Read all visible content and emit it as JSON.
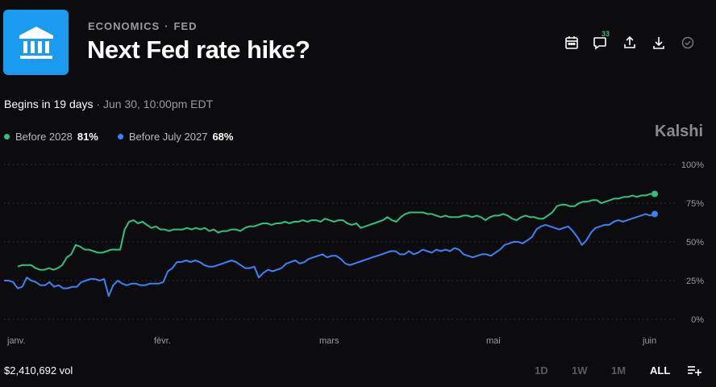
{
  "header": {
    "category": "ECONOMICS",
    "subcategory": "FED",
    "title": "Next Fed rate hike?",
    "logo_icon": "bank-building-icon",
    "comments_count": "33"
  },
  "timing": {
    "begins": "Begins in 19 days",
    "separator": "·",
    "date": "Jun 30, 10:00pm EDT"
  },
  "legend": [
    {
      "name": "Before 2028",
      "value": "81%",
      "color": "#2ec27e"
    },
    {
      "name": "Before July 2027",
      "value": "68%",
      "color": "#3b82f6"
    }
  ],
  "brand": "Kalshi",
  "footer": {
    "volume": "$2,410,692 vol",
    "ranges": [
      "1D",
      "1W",
      "1M",
      "ALL"
    ],
    "active_range": "ALL"
  },
  "chart_data": {
    "type": "line",
    "y_ticks": [
      "100%",
      "75%",
      "50%",
      "25%",
      "0%"
    ],
    "ylim": [
      0,
      100
    ],
    "x_ticks": [
      "janv.",
      "févr.",
      "mars",
      "mai",
      "juin"
    ],
    "grid": true,
    "series": [
      {
        "name": "Before 2028",
        "color": "#2ec27e",
        "values": [
          34,
          35,
          35,
          35,
          33,
          32,
          32,
          33,
          32,
          33,
          35,
          40,
          42,
          48,
          47,
          45,
          45,
          44,
          43,
          43,
          44,
          45,
          45,
          45,
          58,
          63,
          64,
          62,
          63,
          61,
          59,
          60,
          58,
          58,
          57,
          58,
          58,
          58,
          59,
          58,
          59,
          58,
          59,
          57,
          58,
          56,
          57,
          57,
          58,
          58,
          57,
          59,
          60,
          60,
          61,
          62,
          62,
          61,
          62,
          62,
          63,
          62,
          63,
          63,
          64,
          63,
          64,
          64,
          63,
          65,
          64,
          63,
          64,
          64,
          62,
          61,
          62,
          59,
          60,
          61,
          62,
          63,
          64,
          66,
          64,
          63,
          66,
          68,
          69,
          69,
          69,
          69,
          68,
          68,
          67,
          66,
          67,
          66,
          66,
          66,
          67,
          67,
          66,
          67,
          66,
          64,
          66,
          67,
          67,
          68,
          67,
          65,
          64,
          66,
          67,
          66,
          66,
          65,
          65,
          67,
          69,
          73,
          74,
          74,
          73,
          73,
          75,
          76,
          76,
          77,
          77,
          75,
          76,
          77,
          78,
          78,
          79,
          79,
          80,
          79,
          80,
          80,
          81,
          81
        ]
      },
      {
        "name": "Before July 2027",
        "color": "#3b82f6",
        "values": [
          25,
          25,
          24,
          20,
          21,
          27,
          25,
          24,
          22,
          22,
          24,
          21,
          22,
          20,
          20,
          21,
          21,
          24,
          25,
          26,
          26,
          25,
          26,
          15,
          22,
          25,
          23,
          22,
          23,
          23,
          22,
          22,
          23,
          23,
          23,
          24,
          31,
          33,
          37,
          37,
          38,
          37,
          38,
          37,
          35,
          34,
          34,
          35,
          36,
          37,
          38,
          37,
          35,
          33,
          33,
          34,
          27,
          30,
          32,
          31,
          32,
          33,
          36,
          37,
          38,
          36,
          37,
          39,
          40,
          41,
          42,
          40,
          41,
          41,
          39,
          36,
          35,
          36,
          37,
          38,
          39,
          40,
          41,
          42,
          43,
          44,
          44,
          42,
          42,
          44,
          42,
          43,
          45,
          44,
          43,
          45,
          44,
          45,
          44,
          46,
          45,
          42,
          41,
          40,
          41,
          42,
          42,
          41,
          43,
          45,
          48,
          49,
          50,
          50,
          49,
          51,
          53,
          58,
          60,
          61,
          60,
          59,
          58,
          59,
          60,
          57,
          53,
          48,
          51,
          56,
          59,
          60,
          61,
          61,
          63,
          64,
          63,
          64,
          65,
          66,
          67,
          68,
          67,
          68
        ]
      }
    ]
  }
}
